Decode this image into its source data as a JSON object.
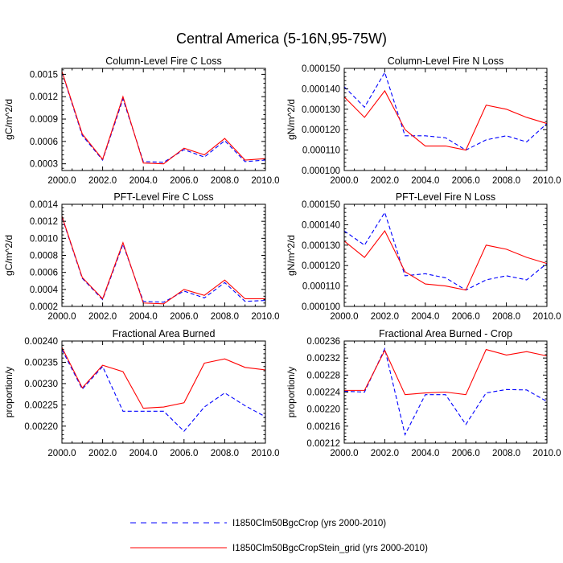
{
  "page": {
    "title": "Central America (5-16N,95-75W)"
  },
  "colors": {
    "series_dashed": "#0000ff",
    "series_solid": "#ff0000"
  },
  "legend": {
    "placement": "bottom-center",
    "entries": [
      {
        "label": "I1850Clm50BgcCrop (yrs 2000-2010)",
        "style": "dashed",
        "color": "#0000ff"
      },
      {
        "label": "I1850Clm50BgcCropStein_grid (yrs 2000-2010)",
        "style": "solid",
        "color": "#ff0000"
      }
    ]
  },
  "chart_data": [
    {
      "type": "line",
      "title": "Column-Level Fire C Loss",
      "ylabel": "gC/m^2/d",
      "xlabel": "",
      "x": [
        2000,
        2001,
        2002,
        2003,
        2004,
        2005,
        2006,
        2007,
        2008,
        2009,
        2010
      ],
      "xlim": [
        2000,
        2010
      ],
      "ylim": [
        0.00021,
        0.00158
      ],
      "xticks": [
        "2000.0",
        "2002.0",
        "2004.0",
        "2006.0",
        "2008.0",
        "2010.0"
      ],
      "xtick_values": [
        2000,
        2002,
        2004,
        2006,
        2008,
        2010
      ],
      "yticks": [
        "0.0003",
        "0.0006",
        "0.0009",
        "0.0012",
        "0.0015"
      ],
      "ytick_values": [
        0.0003,
        0.0006,
        0.0009,
        0.0012,
        0.0015
      ],
      "series": [
        {
          "style": "dashed",
          "color": "#0000ff",
          "values": [
            0.00153,
            0.00068,
            0.00035,
            0.00117,
            0.00033,
            0.00032,
            0.00049,
            0.00039,
            0.00061,
            0.00033,
            0.00035
          ]
        },
        {
          "style": "solid",
          "color": "#ff0000",
          "values": [
            0.00154,
            0.0007,
            0.00036,
            0.0012,
            0.00031,
            0.0003,
            0.00051,
            0.00042,
            0.00064,
            0.00035,
            0.00037
          ]
        }
      ]
    },
    {
      "type": "line",
      "title": "Column-Level Fire N Loss",
      "ylabel": "gN/m^2/d",
      "xlabel": "",
      "x": [
        2000,
        2001,
        2002,
        2003,
        2004,
        2005,
        2006,
        2007,
        2008,
        2009,
        2010
      ],
      "xlim": [
        2000,
        2010
      ],
      "ylim": [
        0.0001,
        0.00015
      ],
      "xticks": [
        "2000.0",
        "2002.0",
        "2004.0",
        "2006.0",
        "2008.0",
        "2010.0"
      ],
      "xtick_values": [
        2000,
        2002,
        2004,
        2006,
        2008,
        2010
      ],
      "yticks": [
        "0.000100",
        "0.000110",
        "0.000120",
        "0.000130",
        "0.000140",
        "0.000150"
      ],
      "ytick_values": [
        0.0001,
        0.00011,
        0.00012,
        0.00013,
        0.00014,
        0.00015
      ],
      "series": [
        {
          "style": "dashed",
          "color": "#0000ff",
          "values": [
            0.000141,
            0.000131,
            0.000148,
            0.000117,
            0.000117,
            0.000116,
            0.00011,
            0.000115,
            0.000117,
            0.000114,
            0.000123
          ]
        },
        {
          "style": "solid",
          "color": "#ff0000",
          "values": [
            0.000136,
            0.000126,
            0.000139,
            0.00012,
            0.000112,
            0.000112,
            0.00011,
            0.000132,
            0.00013,
            0.000126,
            0.000123
          ]
        }
      ]
    },
    {
      "type": "line",
      "title": "PFT-Level Fire C Loss",
      "ylabel": "gC/m^2/d",
      "xlabel": "",
      "x": [
        2000,
        2001,
        2002,
        2003,
        2004,
        2005,
        2006,
        2007,
        2008,
        2009,
        2010
      ],
      "xlim": [
        2000,
        2010
      ],
      "ylim": [
        0.0002,
        0.0014
      ],
      "xticks": [
        "2000.0",
        "2002.0",
        "2004.0",
        "2006.0",
        "2008.0",
        "2010.0"
      ],
      "xtick_values": [
        2000,
        2002,
        2004,
        2006,
        2008,
        2010
      ],
      "yticks": [
        "0.0002",
        "0.0004",
        "0.0006",
        "0.0008",
        "0.0010",
        "0.0012",
        "0.0014"
      ],
      "ytick_values": [
        0.0002,
        0.0004,
        0.0006,
        0.0008,
        0.001,
        0.0012,
        0.0014
      ],
      "series": [
        {
          "style": "dashed",
          "color": "#0000ff",
          "values": [
            0.00125,
            0.00053,
            0.00028,
            0.00093,
            0.00026,
            0.00025,
            0.00038,
            0.0003,
            0.00048,
            0.00026,
            0.00027
          ]
        },
        {
          "style": "solid",
          "color": "#ff0000",
          "values": [
            0.00126,
            0.00054,
            0.00029,
            0.00095,
            0.00024,
            0.00023,
            0.0004,
            0.00033,
            0.00051,
            0.00029,
            0.00029
          ]
        }
      ]
    },
    {
      "type": "line",
      "title": "PFT-Level Fire N Loss",
      "ylabel": "gN/m^2/d",
      "xlabel": "",
      "x": [
        2000,
        2001,
        2002,
        2003,
        2004,
        2005,
        2006,
        2007,
        2008,
        2009,
        2010
      ],
      "xlim": [
        2000,
        2010
      ],
      "ylim": [
        0.0001,
        0.00015
      ],
      "xticks": [
        "2000.0",
        "2002.0",
        "2004.0",
        "2006.0",
        "2008.0",
        "2010.0"
      ],
      "xtick_values": [
        2000,
        2002,
        2004,
        2006,
        2008,
        2010
      ],
      "yticks": [
        "0.000100",
        "0.000110",
        "0.000120",
        "0.000130",
        "0.000140",
        "0.000150"
      ],
      "ytick_values": [
        0.0001,
        0.00011,
        0.00012,
        0.00013,
        0.00014,
        0.00015
      ],
      "series": [
        {
          "style": "dashed",
          "color": "#0000ff",
          "values": [
            0.000137,
            0.00013,
            0.000146,
            0.000115,
            0.000116,
            0.000114,
            0.000108,
            0.000113,
            0.000115,
            0.000113,
            0.000121
          ]
        },
        {
          "style": "solid",
          "color": "#ff0000",
          "values": [
            0.000132,
            0.000124,
            0.000137,
            0.000117,
            0.000111,
            0.00011,
            0.000108,
            0.00013,
            0.000128,
            0.000124,
            0.000121
          ]
        }
      ]
    },
    {
      "type": "line",
      "title": "Fractional Area Burned",
      "ylabel": "proportion/y",
      "xlabel": "",
      "x": [
        2000,
        2001,
        2002,
        2003,
        2004,
        2005,
        2006,
        2007,
        2008,
        2009,
        2010
      ],
      "xlim": [
        2000,
        2010
      ],
      "ylim": [
        0.00216,
        0.0024
      ],
      "xticks": [
        "2000.0",
        "2002.0",
        "2004.0",
        "2006.0",
        "2008.0",
        "2010.0"
      ],
      "xtick_values": [
        2000,
        2002,
        2004,
        2006,
        2008,
        2010
      ],
      "yticks": [
        "0.00220",
        "0.00225",
        "0.00230",
        "0.00235",
        "0.00240"
      ],
      "ytick_values": [
        0.0022,
        0.00225,
        0.0023,
        0.00235,
        0.0024
      ],
      "series": [
        {
          "style": "dashed",
          "color": "#0000ff",
          "values": [
            0.00238,
            0.002287,
            0.00234,
            0.002235,
            0.002235,
            0.002235,
            0.002188,
            0.002245,
            0.002278,
            0.002248,
            0.002222
          ]
        },
        {
          "style": "solid",
          "color": "#ff0000",
          "values": [
            0.002385,
            0.00229,
            0.002343,
            0.002328,
            0.002242,
            0.002245,
            0.002255,
            0.002348,
            0.002358,
            0.002338,
            0.002332
          ]
        }
      ]
    },
    {
      "type": "line",
      "title": "Fractional Area Burned - Crop",
      "ylabel": "proportion/y",
      "xlabel": "",
      "x": [
        2000,
        2001,
        2002,
        2003,
        2004,
        2005,
        2006,
        2007,
        2008,
        2009,
        2010
      ],
      "xlim": [
        2000,
        2010
      ],
      "ylim": [
        0.00212,
        0.00236
      ],
      "xticks": [
        "2000.0",
        "2002.0",
        "2004.0",
        "2006.0",
        "2008.0",
        "2010.0"
      ],
      "xtick_values": [
        2000,
        2002,
        2004,
        2006,
        2008,
        2010
      ],
      "yticks": [
        "0.00212",
        "0.00216",
        "0.00220",
        "0.00224",
        "0.00228",
        "0.00232",
        "0.00236"
      ],
      "ytick_values": [
        0.00212,
        0.00216,
        0.0022,
        0.00224,
        0.00228,
        0.00232,
        0.00236
      ],
      "series": [
        {
          "style": "dashed",
          "color": "#0000ff",
          "values": [
            0.002242,
            0.00224,
            0.002342,
            0.00214,
            0.002234,
            0.002234,
            0.002164,
            0.002238,
            0.002246,
            0.002245,
            0.002218
          ]
        },
        {
          "style": "solid",
          "color": "#ff0000",
          "values": [
            0.002244,
            0.002244,
            0.002338,
            0.002234,
            0.002238,
            0.00224,
            0.002234,
            0.00234,
            0.002327,
            0.002335,
            0.002325
          ]
        }
      ]
    }
  ]
}
